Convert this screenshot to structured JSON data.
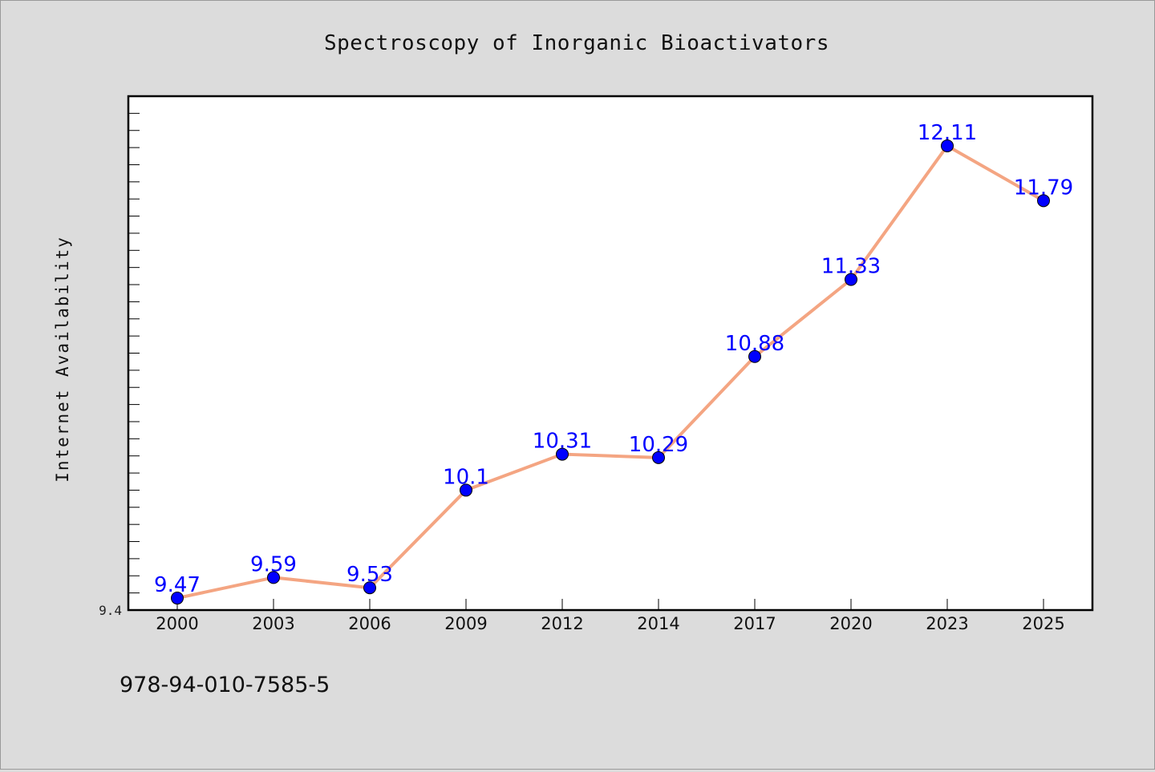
{
  "chart_data": {
    "type": "line",
    "title": "Spectroscopy of Inorganic Bioactivators",
    "xlabel": "",
    "ylabel": "Internet Availability",
    "categories": [
      "2000",
      "2003",
      "2006",
      "2009",
      "2012",
      "2014",
      "2017",
      "2020",
      "2023",
      "2025"
    ],
    "values": [
      9.47,
      9.59,
      9.53,
      10.1,
      10.31,
      10.29,
      10.88,
      11.33,
      12.11,
      11.79
    ],
    "data_labels": [
      "9.47",
      "9.59",
      "9.53",
      "10.1",
      "10.31",
      "10.29",
      "10.88",
      "11.33",
      "12.11",
      "11.79"
    ],
    "ylim": [
      9.4,
      12.4
    ],
    "y_tick_label": "9.4",
    "y_minor_step": 0.1,
    "grid": false,
    "legend": "none",
    "colors": {
      "line": "#f4a582",
      "marker": "#0000ff",
      "data_label": "#0000ff",
      "plot_background": "#ffffff",
      "figure_background": "#dcdcdc"
    }
  },
  "footer_text": "978-94-010-7585-5"
}
